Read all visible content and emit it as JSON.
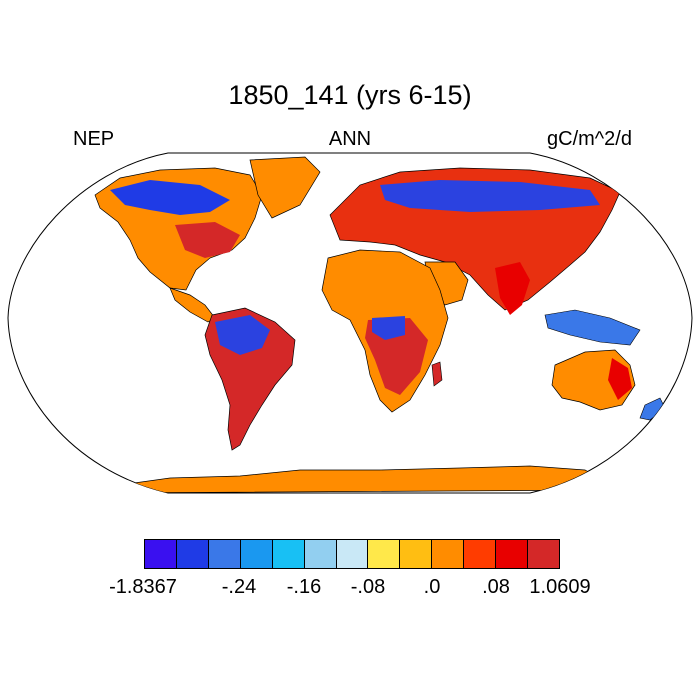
{
  "header": {
    "title": "1850_141 (yrs 6-15)",
    "left_label": "NEP",
    "center_label": "ANN",
    "right_label": "gC/m^2/d"
  },
  "map": {
    "projection": "robinson",
    "variable": "NEP",
    "ocean_color": "#ffffff",
    "coastline_color": "#000000"
  },
  "legend": {
    "colors": [
      "#3a10f0",
      "#1f3be6",
      "#3a78e8",
      "#1a98f0",
      "#18c0f4",
      "#92cff0",
      "#c9e8f6",
      "#ffe84a",
      "#ffbe12",
      "#ff8c00",
      "#ff3c00",
      "#e80000",
      "#d42828"
    ],
    "labels": [
      "-1.8367",
      "-.24",
      "-.16",
      "-.08",
      ".0",
      ".08",
      "1.0609"
    ]
  }
}
